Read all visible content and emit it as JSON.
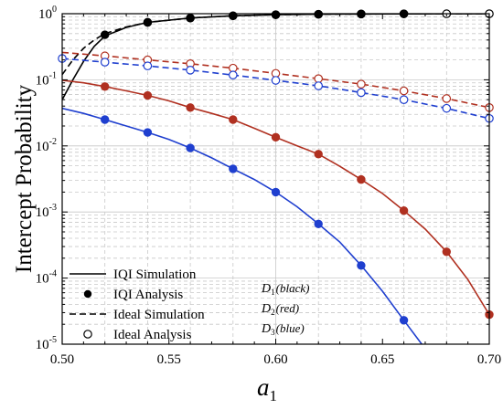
{
  "chart_data": {
    "type": "line",
    "title": "",
    "xlabel": "a",
    "xlabel_subscript": "1",
    "ylabel": "Intercept Probability",
    "yscale": "log",
    "xlim": [
      0.5,
      0.7
    ],
    "ylim": [
      1e-05,
      1
    ],
    "grid": true,
    "legend_position": "bottom-left",
    "x_ticks": [
      0.5,
      0.55,
      0.6,
      0.65,
      0.7
    ],
    "x_tick_labels": [
      "0.50",
      "0.55",
      "0.60",
      "0.65",
      "0.70"
    ],
    "y_ticks": [
      {
        "value": 1e-05,
        "base": "10",
        "exp": "-5"
      },
      {
        "value": 0.0001,
        "base": "10",
        "exp": "-4"
      },
      {
        "value": 0.001,
        "base": "10",
        "exp": "-3"
      },
      {
        "value": 0.01,
        "base": "10",
        "exp": "-2"
      },
      {
        "value": 0.1,
        "base": "10",
        "exp": "-1"
      },
      {
        "value": 1,
        "base": "10",
        "exp": "0"
      }
    ],
    "legend": [
      {
        "label": "IQI Simulation",
        "style": "solid"
      },
      {
        "label": "IQI Analysis",
        "style": "filled-marker"
      },
      {
        "label": "Ideal Simulation",
        "style": "dashed"
      },
      {
        "label": "Ideal Analysis",
        "style": "open-marker"
      }
    ],
    "legend_notes": [
      {
        "sym": "D",
        "sub": "1",
        "text": "(black)"
      },
      {
        "sym": "D",
        "sub": "2",
        "text": "(red)"
      },
      {
        "sym": "D",
        "sub": "3",
        "text": "(blue)"
      }
    ],
    "series": [
      {
        "color": "#000000",
        "iqi_sim": {
          "x": [
            0.5,
            0.505,
            0.51,
            0.515,
            0.52,
            0.53,
            0.54,
            0.56,
            0.58,
            0.6,
            0.62,
            0.64,
            0.66,
            0.68,
            0.7
          ],
          "y": [
            0.05,
            0.1,
            0.19,
            0.32,
            0.46,
            0.62,
            0.74,
            0.86,
            0.93,
            0.965,
            0.98,
            0.99,
            0.995,
            0.997,
            0.998
          ]
        },
        "iqi_ana": {
          "x": [
            0.52,
            0.54,
            0.56,
            0.58,
            0.6,
            0.62,
            0.64,
            0.66
          ],
          "y": [
            0.48,
            0.74,
            0.86,
            0.93,
            0.965,
            0.98,
            0.99,
            0.995
          ]
        },
        "ideal_sim": {
          "x": [
            0.5,
            0.505,
            0.51,
            0.515,
            0.52,
            0.53,
            0.54,
            0.56,
            0.58,
            0.6,
            0.62,
            0.64,
            0.66,
            0.68,
            0.7
          ],
          "y": [
            0.12,
            0.2,
            0.3,
            0.4,
            0.5,
            0.63,
            0.74,
            0.86,
            0.93,
            0.965,
            0.98,
            0.99,
            0.995,
            0.997,
            0.998
          ]
        },
        "ideal_ana": {
          "x": [
            0.54,
            0.56,
            0.58,
            0.6,
            0.62,
            0.64,
            0.66,
            0.68,
            0.7
          ],
          "y": [
            0.74,
            0.86,
            0.93,
            0.965,
            0.98,
            0.99,
            0.995,
            0.997,
            0.998
          ]
        }
      },
      {
        "color": "#b03020",
        "iqi_sim": {
          "x": [
            0.5,
            0.51,
            0.52,
            0.53,
            0.54,
            0.55,
            0.56,
            0.57,
            0.58,
            0.59,
            0.6,
            0.61,
            0.62,
            0.63,
            0.64,
            0.65,
            0.66,
            0.67,
            0.68,
            0.69,
            0.7
          ],
          "y": [
            0.098,
            0.09,
            0.079,
            0.068,
            0.058,
            0.048,
            0.038,
            0.031,
            0.025,
            0.0185,
            0.0135,
            0.01,
            0.0075,
            0.0049,
            0.0031,
            0.0019,
            0.00105,
            0.00055,
            0.00025,
            9.5e-05,
            2.8e-05
          ]
        },
        "iqi_ana": {
          "x": [
            0.52,
            0.54,
            0.56,
            0.58,
            0.6,
            0.62,
            0.64,
            0.66,
            0.68,
            0.7
          ],
          "y": [
            0.079,
            0.058,
            0.038,
            0.025,
            0.0135,
            0.0075,
            0.0031,
            0.00105,
            0.00025,
            2.8e-05
          ]
        },
        "ideal_sim": {
          "x": [
            0.5,
            0.52,
            0.54,
            0.56,
            0.58,
            0.6,
            0.62,
            0.64,
            0.66,
            0.68,
            0.7
          ],
          "y": [
            0.26,
            0.23,
            0.2,
            0.175,
            0.15,
            0.125,
            0.104,
            0.086,
            0.068,
            0.052,
            0.038
          ]
        },
        "ideal_ana": {
          "x": [
            0.52,
            0.54,
            0.56,
            0.58,
            0.6,
            0.62,
            0.64,
            0.66,
            0.68,
            0.7
          ],
          "y": [
            0.23,
            0.2,
            0.175,
            0.15,
            0.125,
            0.104,
            0.086,
            0.068,
            0.052,
            0.038
          ]
        }
      },
      {
        "color": "#1f3fcf",
        "iqi_sim": {
          "x": [
            0.5,
            0.51,
            0.52,
            0.53,
            0.54,
            0.55,
            0.56,
            0.57,
            0.58,
            0.59,
            0.6,
            0.61,
            0.62,
            0.63,
            0.64,
            0.65,
            0.66,
            0.67
          ],
          "y": [
            0.037,
            0.031,
            0.025,
            0.02,
            0.016,
            0.0125,
            0.0093,
            0.0066,
            0.0045,
            0.0031,
            0.002,
            0.0012,
            0.00066,
            0.00035,
            0.000155,
            6.3e-05,
            2.3e-05,
            8.5e-06
          ]
        },
        "iqi_ana": {
          "x": [
            0.52,
            0.54,
            0.56,
            0.58,
            0.6,
            0.62,
            0.64,
            0.66
          ],
          "y": [
            0.025,
            0.016,
            0.0093,
            0.0045,
            0.002,
            0.00066,
            0.000155,
            2.3e-05
          ]
        },
        "ideal_sim": {
          "x": [
            0.5,
            0.52,
            0.54,
            0.56,
            0.58,
            0.6,
            0.62,
            0.64,
            0.66,
            0.68,
            0.7
          ],
          "y": [
            0.21,
            0.185,
            0.162,
            0.14,
            0.118,
            0.098,
            0.081,
            0.064,
            0.05,
            0.037,
            0.026
          ]
        },
        "ideal_ana": {
          "x": [
            0.5,
            0.52,
            0.54,
            0.56,
            0.58,
            0.6,
            0.62,
            0.64,
            0.66,
            0.68,
            0.7
          ],
          "y": [
            0.21,
            0.185,
            0.162,
            0.14,
            0.118,
            0.098,
            0.081,
            0.064,
            0.05,
            0.037,
            0.026
          ]
        }
      }
    ]
  }
}
